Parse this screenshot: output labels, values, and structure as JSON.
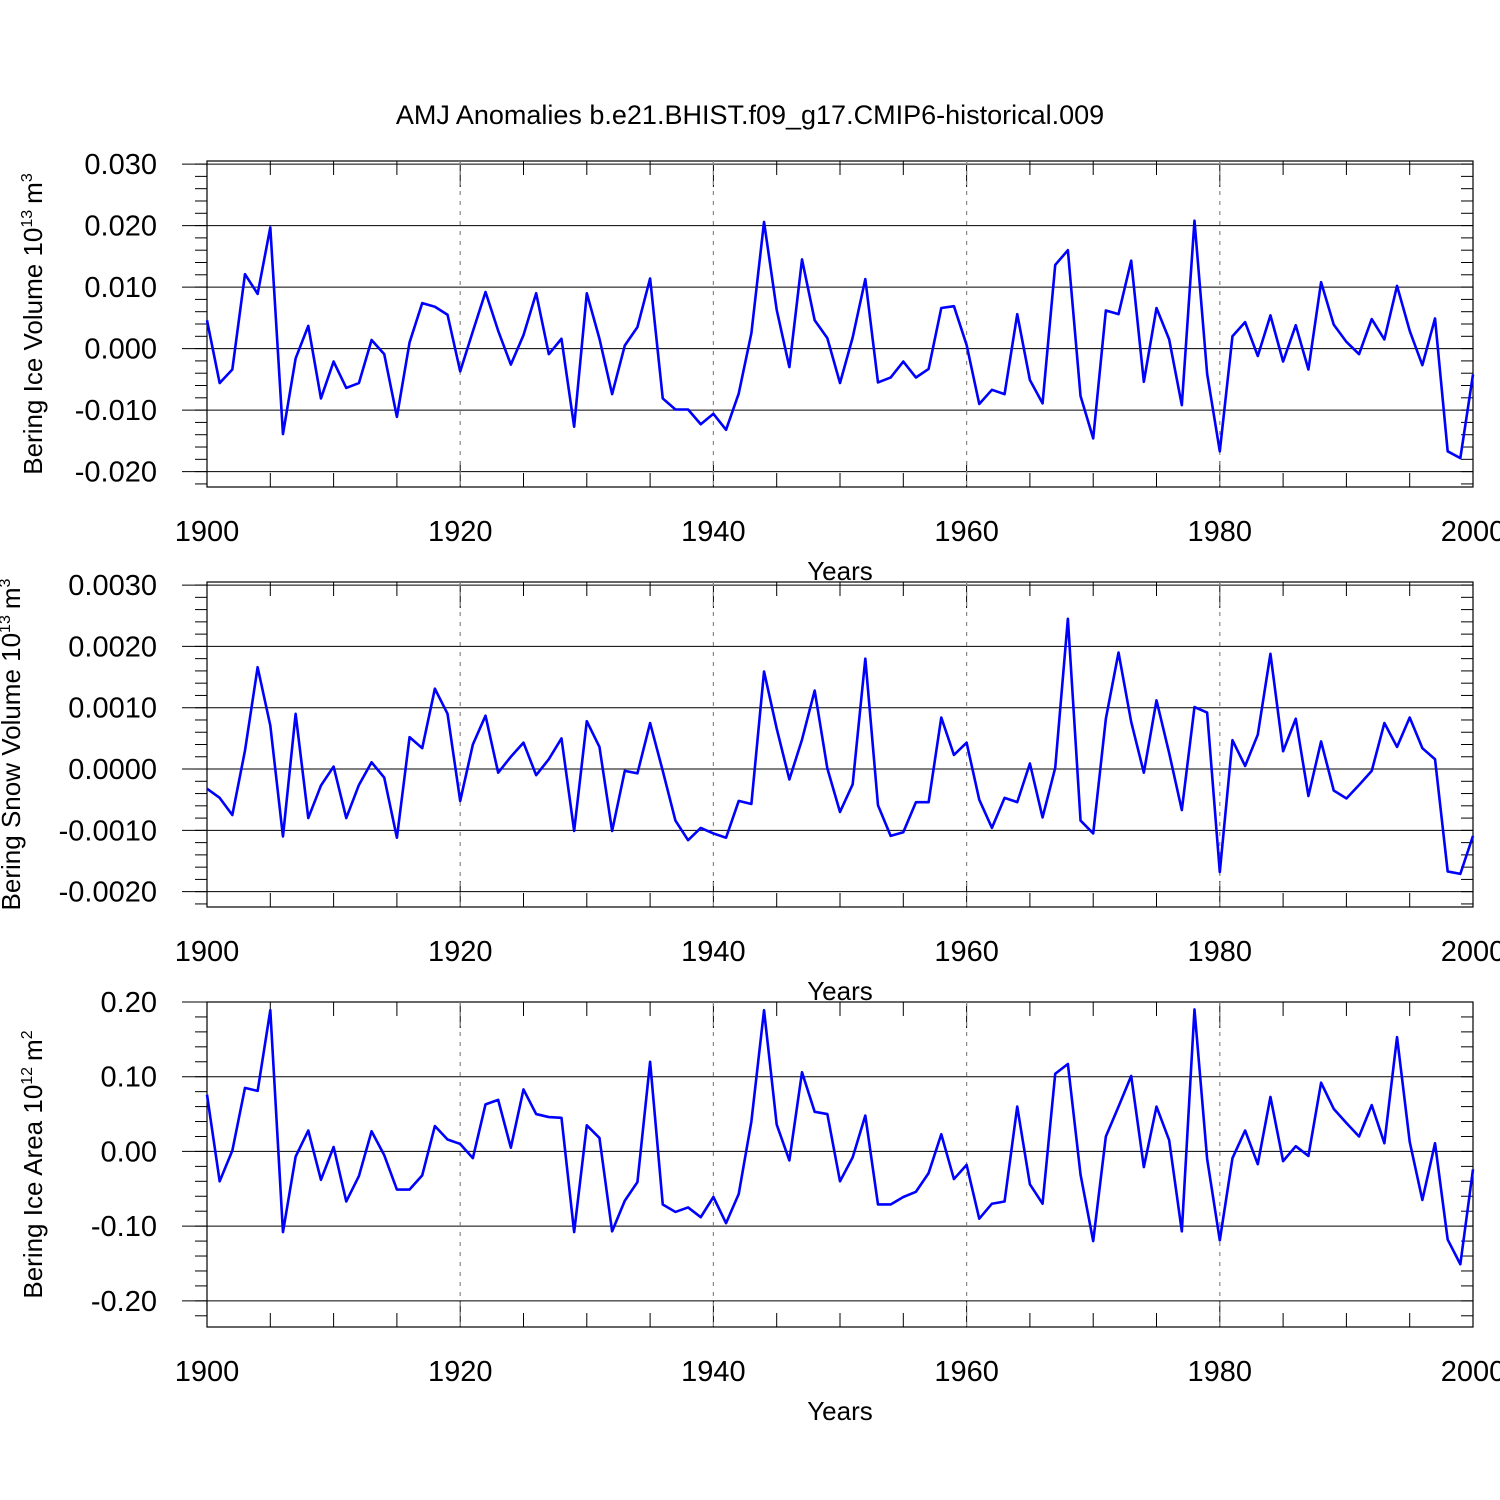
{
  "figure": {
    "title": "AMJ Anomalies b.e21.BHIST.f09_g17.CMIP6-historical.009",
    "line_color": "#0000ff"
  },
  "chart_data": [
    {
      "type": "line",
      "ylabel_text": "Bering Ice Volume 10",
      "ylabel_exp": "13",
      "ylabel_unit": "m",
      "ylabel_unit_exp": "3",
      "xlabel": "Years",
      "xlim": [
        1900,
        2000
      ],
      "ylim": [
        -0.0225,
        0.0305
      ],
      "x_ticks": [
        "1900",
        "1920",
        "1940",
        "1960",
        "1980",
        "2000"
      ],
      "y_ticks": [
        {
          "value": 0.03,
          "label": "0.030"
        },
        {
          "value": 0.02,
          "label": "0.020"
        },
        {
          "value": 0.01,
          "label": "0.010"
        },
        {
          "value": 0.0,
          "label": "0.000"
        },
        {
          "value": -0.01,
          "label": "-0.010"
        },
        {
          "value": -0.02,
          "label": "-0.020"
        }
      ],
      "series": [
        {
          "name": "Bering Ice Volume",
          "x_start": 1900,
          "values": [
            0.0046,
            -0.0056,
            -0.0034,
            0.0121,
            0.0089,
            0.0197,
            -0.0139,
            -0.0016,
            0.0037,
            -0.0081,
            -0.0021,
            -0.0064,
            -0.0056,
            0.0014,
            -0.0009,
            -0.0111,
            0.001,
            0.0074,
            0.0068,
            0.0055,
            -0.0037,
            0.0028,
            0.0092,
            0.0029,
            -0.0026,
            0.0022,
            0.009,
            -0.0009,
            0.0016,
            -0.0127,
            0.009,
            0.0016,
            -0.0074,
            0.0005,
            0.0035,
            0.0114,
            -0.0081,
            -0.0099,
            -0.0099,
            -0.0123,
            -0.0106,
            -0.0132,
            -0.0073,
            0.0025,
            0.0206,
            0.0063,
            -0.003,
            0.0145,
            0.0046,
            0.0017,
            -0.0056,
            0.0018,
            0.0113,
            -0.0055,
            -0.0047,
            -0.0021,
            -0.0047,
            -0.0033,
            0.0066,
            0.0069,
            0.0006,
            -0.009,
            -0.0067,
            -0.0074,
            0.0056,
            -0.0051,
            -0.0089,
            0.0136,
            0.016,
            -0.0077,
            -0.0146,
            0.0062,
            0.0056,
            0.0143,
            -0.0054,
            0.0066,
            0.0015,
            -0.0092,
            0.0208,
            -0.0041,
            -0.0167,
            0.002,
            0.0043,
            -0.0012,
            0.0054,
            -0.0021,
            0.0038,
            -0.0034,
            0.0108,
            0.0039,
            0.0011,
            -0.0009,
            0.0048,
            0.0015,
            0.0102,
            0.0029,
            -0.0027,
            0.0049,
            -0.0167,
            -0.0178,
            -0.0042
          ]
        }
      ]
    },
    {
      "type": "line",
      "ylabel_text": "Bering Snow Volume 10",
      "ylabel_exp": "13",
      "ylabel_unit": "m",
      "ylabel_unit_exp": "3",
      "xlabel": "Years",
      "xlim": [
        1900,
        2000
      ],
      "ylim": [
        -0.00225,
        0.00305
      ],
      "x_ticks": [
        "1900",
        "1920",
        "1940",
        "1960",
        "1980",
        "2000"
      ],
      "y_ticks": [
        {
          "value": 0.003,
          "label": "0.0030"
        },
        {
          "value": 0.002,
          "label": "0.0020"
        },
        {
          "value": 0.001,
          "label": "0.0010"
        },
        {
          "value": 0.0,
          "label": "0.0000"
        },
        {
          "value": -0.001,
          "label": "-0.0010"
        },
        {
          "value": -0.002,
          "label": "-0.0020"
        }
      ],
      "series": [
        {
          "name": "Bering Snow Volume",
          "x_start": 1900,
          "values": [
            -0.00032,
            -0.00047,
            -0.00075,
            0.0003,
            0.00166,
            0.00071,
            -0.0011,
            0.0009,
            -0.0008,
            -0.00027,
            4e-05,
            -0.0008,
            -0.00026,
            0.00011,
            -0.00014,
            -0.00112,
            0.00052,
            0.00034,
            0.00131,
            0.0009,
            -0.00052,
            0.0004,
            0.00087,
            -6e-05,
            0.0002,
            0.00043,
            -0.0001,
            0.00016,
            0.0005,
            -0.00101,
            0.00078,
            0.00036,
            -0.00101,
            -3e-05,
            -7e-05,
            0.00075,
            -3e-05,
            -0.00084,
            -0.00116,
            -0.00096,
            -0.00105,
            -0.00112,
            -0.00052,
            -0.00057,
            0.00159,
            0.00066,
            -0.00017,
            0.00048,
            0.00128,
            1e-05,
            -0.0007,
            -0.00025,
            0.0018,
            -0.00059,
            -0.00109,
            -0.00103,
            -0.00054,
            -0.00054,
            0.00084,
            0.00023,
            0.00043,
            -0.0005,
            -0.00096,
            -0.00047,
            -0.00054,
            9e-05,
            -0.00079,
            2e-05,
            0.00245,
            -0.00084,
            -0.00105,
            0.00082,
            0.0019,
            0.00077,
            -6e-05,
            0.00112,
            0.00026,
            -0.00067,
            0.00101,
            0.00092,
            -0.00168,
            0.00047,
            5e-05,
            0.00056,
            0.00188,
            0.00029,
            0.00082,
            -0.00044,
            0.00045,
            -0.00035,
            -0.00048,
            -0.00026,
            -3e-05,
            0.00075,
            0.00036,
            0.00084,
            0.00034,
            0.00016,
            -0.00167,
            -0.00171,
            -0.00109
          ]
        }
      ]
    },
    {
      "type": "line",
      "ylabel_text": "Bering Ice Area 10",
      "ylabel_exp": "12",
      "ylabel_unit": "m",
      "ylabel_unit_exp": "2",
      "xlabel": "Years",
      "xlim": [
        1900,
        2000
      ],
      "ylim": [
        -0.235,
        0.2
      ],
      "x_ticks": [
        "1900",
        "1920",
        "1940",
        "1960",
        "1980",
        "2000"
      ],
      "y_ticks": [
        {
          "value": 0.2,
          "label": "0.20"
        },
        {
          "value": 0.1,
          "label": "0.10"
        },
        {
          "value": 0.0,
          "label": "0.00"
        },
        {
          "value": -0.1,
          "label": "-0.10"
        },
        {
          "value": -0.2,
          "label": "-0.20"
        }
      ],
      "series": [
        {
          "name": "Bering Ice Area",
          "x_start": 1900,
          "values": [
            0.076,
            -0.04,
            0.001,
            0.085,
            0.081,
            0.189,
            -0.108,
            -0.007,
            0.028,
            -0.038,
            0.006,
            -0.067,
            -0.033,
            0.027,
            -0.005,
            -0.051,
            -0.051,
            -0.032,
            0.034,
            0.016,
            0.01,
            -0.009,
            0.063,
            0.069,
            0.005,
            0.083,
            0.05,
            0.046,
            0.045,
            -0.108,
            0.035,
            0.018,
            -0.107,
            -0.066,
            -0.041,
            0.12,
            -0.071,
            -0.081,
            -0.075,
            -0.088,
            -0.061,
            -0.096,
            -0.057,
            0.04,
            0.189,
            0.036,
            -0.012,
            0.106,
            0.053,
            0.05,
            -0.04,
            -0.008,
            0.048,
            -0.071,
            -0.071,
            -0.061,
            -0.054,
            -0.029,
            0.023,
            -0.037,
            -0.018,
            -0.09,
            -0.07,
            -0.067,
            0.06,
            -0.044,
            -0.07,
            0.104,
            0.117,
            -0.031,
            -0.12,
            0.02,
            0.06,
            0.101,
            -0.021,
            0.06,
            0.015,
            -0.107,
            0.19,
            -0.01,
            -0.119,
            -0.009,
            0.028,
            -0.017,
            0.073,
            -0.013,
            0.007,
            -0.006,
            0.092,
            0.057,
            0.038,
            0.02,
            0.062,
            0.011,
            0.153,
            0.013,
            -0.065,
            0.011,
            -0.118,
            -0.151,
            -0.024
          ]
        }
      ]
    }
  ]
}
